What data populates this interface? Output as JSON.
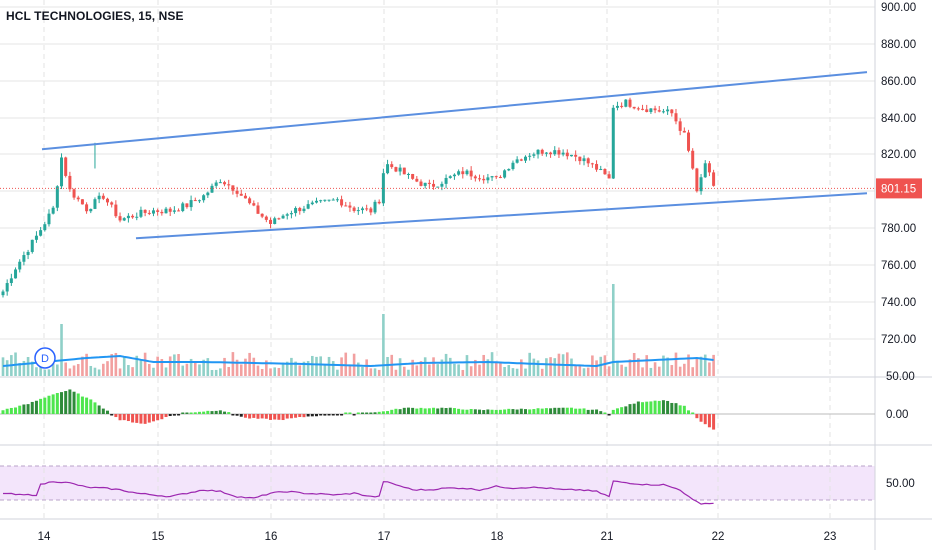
{
  "header": {
    "title": "HCL TECHNOLOGIES, 15, NSE"
  },
  "colors": {
    "up": "#26a69a",
    "down": "#ef5350",
    "volume_up": "#8fd0c8",
    "volume_down": "#f2a0a0",
    "volume_ma": "#2196f3",
    "trendline": "#5b8fe0",
    "price_line": "#ef5350",
    "hist_up_strong": "#4ee64e",
    "hist_up_weak": "#2e8b3a",
    "hist_down": "#ef5350",
    "rsi_line": "#9c27b0",
    "rsi_band": "#f3e5fb",
    "grid": "#e6e6e6"
  },
  "price_axis": {
    "labels": [
      "900.00",
      "880.00",
      "860.00",
      "840.00",
      "820.00",
      "800.00",
      "780.00",
      "760.00",
      "740.00",
      "720.00"
    ],
    "current_price": "801.15"
  },
  "macd_axis": {
    "labels": [
      "50.00",
      "0.00"
    ]
  },
  "rsi_axis": {
    "labels": [
      "50.00"
    ]
  },
  "time_axis": {
    "labels": [
      "14",
      "15",
      "16",
      "17",
      "18",
      "21",
      "22",
      "23"
    ]
  },
  "marker": {
    "label": "D"
  },
  "chart_data": {
    "type": "candlestick",
    "title": "HCL TECHNOLOGIES, 15, NSE",
    "x_labels": [
      "14",
      "15",
      "16",
      "17",
      "18",
      "21",
      "22",
      "23"
    ],
    "ylim": [
      712,
      903
    ],
    "current_price": 801.15,
    "anchors": [
      [
        0,
        745
      ],
      [
        3,
        758
      ],
      [
        8,
        775
      ],
      [
        12,
        790
      ],
      [
        14,
        818
      ],
      [
        16,
        800
      ],
      [
        20,
        790
      ],
      [
        24,
        797
      ],
      [
        28,
        784
      ],
      [
        32,
        787
      ],
      [
        36,
        789
      ],
      [
        40,
        789
      ],
      [
        44,
        792
      ],
      [
        48,
        797
      ],
      [
        52,
        806
      ],
      [
        56,
        800
      ],
      [
        60,
        790
      ],
      [
        64,
        782
      ],
      [
        68,
        788
      ],
      [
        72,
        791
      ],
      [
        76,
        793
      ],
      [
        80,
        795
      ],
      [
        84,
        790
      ],
      [
        88,
        789
      ],
      [
        90,
        795
      ],
      [
        91,
        810
      ],
      [
        92,
        814
      ],
      [
        94,
        812
      ],
      [
        98,
        806
      ],
      [
        102,
        802
      ],
      [
        106,
        806
      ],
      [
        110,
        810
      ],
      [
        114,
        808
      ],
      [
        118,
        806
      ],
      [
        122,
        816
      ],
      [
        126,
        820
      ],
      [
        130,
        822
      ],
      [
        134,
        821
      ],
      [
        138,
        818
      ],
      [
        142,
        812
      ],
      [
        145,
        806
      ],
      [
        146,
        846
      ],
      [
        149,
        848
      ],
      [
        153,
        845
      ],
      [
        156,
        844
      ],
      [
        160,
        842
      ],
      [
        163,
        830
      ],
      [
        165,
        812
      ],
      [
        166,
        798
      ],
      [
        168,
        815
      ],
      [
        170,
        801
      ]
    ],
    "upper_channel": {
      "x": [
        0,
        223
      ],
      "y": [
        822.5,
        864.5
      ]
    },
    "lower_channel": {
      "x": [
        23,
        223
      ],
      "y": [
        774,
        798.5
      ]
    },
    "volume_ma": [
      [
        0,
        10
      ],
      [
        20,
        18
      ],
      [
        28,
        20
      ],
      [
        36,
        14
      ],
      [
        48,
        14
      ],
      [
        60,
        13
      ],
      [
        72,
        12
      ],
      [
        88,
        10
      ],
      [
        100,
        13
      ],
      [
        116,
        14
      ],
      [
        128,
        12
      ],
      [
        142,
        10
      ],
      [
        146,
        14
      ],
      [
        156,
        16
      ],
      [
        166,
        18
      ],
      [
        170,
        16
      ]
    ],
    "macd_histogram": [
      [
        0,
        4
      ],
      [
        6,
        10
      ],
      [
        12,
        20
      ],
      [
        16,
        24
      ],
      [
        22,
        12
      ],
      [
        28,
        -6
      ],
      [
        34,
        -10
      ],
      [
        40,
        -2
      ],
      [
        46,
        2
      ],
      [
        52,
        4
      ],
      [
        58,
        -4
      ],
      [
        66,
        -6
      ],
      [
        74,
        -2
      ],
      [
        82,
        0
      ],
      [
        90,
        2
      ],
      [
        96,
        6
      ],
      [
        106,
        6
      ],
      [
        114,
        4
      ],
      [
        124,
        5
      ],
      [
        136,
        6
      ],
      [
        142,
        4
      ],
      [
        145,
        0
      ],
      [
        146,
        4
      ],
      [
        152,
        12
      ],
      [
        158,
        14
      ],
      [
        163,
        8
      ],
      [
        165,
        0
      ],
      [
        167,
        -8
      ],
      [
        170,
        -16
      ]
    ],
    "rsi": [
      [
        0,
        48
      ],
      [
        4,
        46
      ],
      [
        8,
        46
      ],
      [
        9,
        58
      ],
      [
        12,
        62
      ],
      [
        16,
        60
      ],
      [
        20,
        55
      ],
      [
        24,
        54
      ],
      [
        28,
        52
      ],
      [
        32,
        48
      ],
      [
        36,
        46
      ],
      [
        40,
        44
      ],
      [
        44,
        48
      ],
      [
        48,
        52
      ],
      [
        52,
        50
      ],
      [
        56,
        44
      ],
      [
        60,
        42
      ],
      [
        64,
        48
      ],
      [
        68,
        50
      ],
      [
        72,
        48
      ],
      [
        76,
        47
      ],
      [
        80,
        46
      ],
      [
        84,
        48
      ],
      [
        88,
        44
      ],
      [
        90,
        44
      ],
      [
        91,
        62
      ],
      [
        94,
        58
      ],
      [
        98,
        52
      ],
      [
        102,
        52
      ],
      [
        106,
        54
      ],
      [
        110,
        54
      ],
      [
        114,
        52
      ],
      [
        118,
        56
      ],
      [
        122,
        54
      ],
      [
        126,
        55
      ],
      [
        130,
        54
      ],
      [
        134,
        52
      ],
      [
        138,
        52
      ],
      [
        142,
        50
      ],
      [
        145,
        44
      ],
      [
        146,
        62
      ],
      [
        150,
        60
      ],
      [
        154,
        58
      ],
      [
        158,
        58
      ],
      [
        162,
        52
      ],
      [
        165,
        40
      ],
      [
        167,
        36
      ],
      [
        170,
        36
      ]
    ]
  }
}
